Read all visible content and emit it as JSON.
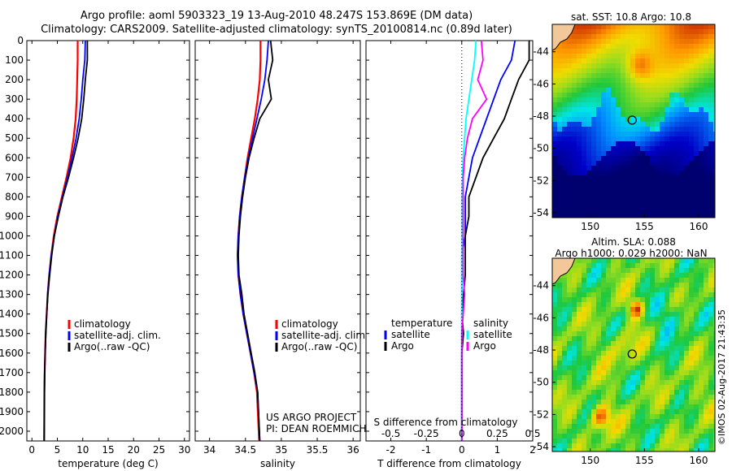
{
  "header": {
    "line1": "Argo profile: aoml 5903323_19 13-Aug-2010 48.247S 153.869E (DM data)",
    "line2": "Climatology: CARS2009. Satellite-adjusted climatology: synTS_20100814.nc (0.89d later)"
  },
  "colors": {
    "climatology": "#ff0000",
    "satellite": "#0000ff",
    "argo": "#000000",
    "sal_satellite": "#00ffff",
    "sal_argo": "#ff00ff"
  },
  "chart_data": [
    {
      "type": "line",
      "panel": "temperature",
      "xlabel": "temperature (deg C)",
      "ylabel": "",
      "xlim": [
        -1,
        31
      ],
      "ylim": [
        2050,
        0
      ],
      "xticks": [
        0,
        5,
        10,
        15,
        20,
        25,
        30
      ],
      "yticks": [
        0,
        100,
        200,
        300,
        400,
        500,
        600,
        700,
        800,
        900,
        1000,
        1100,
        1200,
        1300,
        1400,
        1500,
        1600,
        1700,
        1800,
        1900,
        2000
      ],
      "legend": {
        "position": "lower-right",
        "entries": [
          "climatology",
          "satellite-adj. clim.",
          "Argo(..raw -QC)"
        ]
      },
      "series": [
        {
          "name": "climatology",
          "color": "#ff0000",
          "x": [
            9.0,
            9.0,
            8.9,
            8.8,
            8.6,
            8.2,
            7.6,
            6.8,
            5.9,
            5.0,
            4.3,
            3.8,
            3.4,
            3.1,
            2.9,
            2.7,
            2.6,
            2.5,
            2.45,
            2.4
          ],
          "y": [
            0,
            100,
            200,
            300,
            400,
            500,
            600,
            700,
            800,
            900,
            1000,
            1100,
            1200,
            1300,
            1400,
            1500,
            1600,
            1700,
            1800,
            2050
          ]
        },
        {
          "name": "satellite-adj. clim.",
          "color": "#0000ff",
          "x": [
            10.5,
            10.4,
            10.0,
            9.7,
            9.3,
            8.7,
            7.9,
            7.0,
            6.0,
            5.1,
            4.4,
            3.8,
            3.4,
            3.1,
            2.9,
            2.7,
            2.6,
            2.5,
            2.45,
            2.4
          ],
          "y": [
            0,
            100,
            200,
            300,
            400,
            500,
            600,
            700,
            800,
            900,
            1000,
            1100,
            1200,
            1300,
            1400,
            1500,
            1600,
            1700,
            1800,
            2050
          ]
        },
        {
          "name": "Argo(..raw -QC)",
          "color": "#000000",
          "x": [
            10.9,
            10.9,
            10.5,
            10.2,
            9.8,
            9.1,
            8.2,
            7.2,
            6.1,
            5.2,
            4.4,
            3.9,
            3.5,
            3.15,
            2.9,
            2.75,
            2.6,
            2.5,
            2.45,
            2.4
          ],
          "y": [
            0,
            100,
            200,
            300,
            400,
            500,
            600,
            700,
            800,
            900,
            1000,
            1100,
            1200,
            1300,
            1400,
            1500,
            1600,
            1700,
            1800,
            2050
          ]
        }
      ]
    },
    {
      "type": "line",
      "panel": "salinity",
      "xlabel": "salinity",
      "xlim": [
        33.8,
        36.1
      ],
      "ylim": [
        2050,
        0
      ],
      "xticks": [
        34,
        34.5,
        35,
        35.5,
        36
      ],
      "legend": {
        "position": "lower-right",
        "entries": [
          "climatology",
          "satellite-adj. clim.",
          "Argo(..raw -QC)"
        ]
      },
      "annotations": [
        "US ARGO PROJECT",
        "PI: DEAN ROEMMICH"
      ],
      "series": [
        {
          "name": "climatology",
          "color": "#ff0000",
          "x": [
            34.71,
            34.71,
            34.7,
            34.67,
            34.63,
            34.58,
            34.53,
            34.49,
            34.45,
            34.42,
            34.4,
            34.39,
            34.4,
            34.43,
            34.47,
            34.52,
            34.57,
            34.62,
            34.66,
            34.69
          ],
          "y": [
            0,
            100,
            200,
            300,
            400,
            500,
            600,
            700,
            800,
            900,
            1000,
            1100,
            1200,
            1300,
            1400,
            1500,
            1600,
            1700,
            1800,
            2050
          ]
        },
        {
          "name": "satellite-adj. clim.",
          "color": "#0000ff",
          "x": [
            34.82,
            34.8,
            34.77,
            34.72,
            34.66,
            34.6,
            34.54,
            34.49,
            34.45,
            34.42,
            34.4,
            34.39,
            34.4,
            34.43,
            34.47,
            34.52,
            34.57,
            34.62,
            34.67,
            34.7
          ],
          "y": [
            0,
            100,
            200,
            300,
            400,
            500,
            600,
            700,
            800,
            900,
            1000,
            1100,
            1200,
            1300,
            1400,
            1500,
            1600,
            1700,
            1800,
            2050
          ]
        },
        {
          "name": "Argo(..raw -QC)",
          "color": "#000000",
          "x": [
            34.85,
            34.88,
            34.82,
            34.86,
            34.7,
            34.62,
            34.55,
            34.5,
            34.46,
            34.43,
            34.41,
            34.4,
            34.41,
            34.45,
            34.48,
            34.53,
            34.58,
            34.63,
            34.67,
            34.7
          ],
          "y": [
            0,
            100,
            200,
            300,
            400,
            500,
            600,
            700,
            800,
            900,
            1000,
            1100,
            1200,
            1300,
            1400,
            1500,
            1600,
            1700,
            1800,
            2050
          ]
        }
      ]
    },
    {
      "type": "line",
      "panel": "differences",
      "xlabel": "T difference from climatology",
      "xlabel_top": "S difference from climatology",
      "xlim": [
        -2.7,
        2.0
      ],
      "ylim": [
        2050,
        0
      ],
      "xticks": [
        -2,
        -1,
        0,
        1,
        2
      ],
      "xticks_sal": [
        {
          "label": "-0.5",
          "value": -2
        },
        {
          "label": "-0.25",
          "value": -1
        },
        {
          "label": "0",
          "value": 0
        },
        {
          "label": "0.25",
          "value": 1
        },
        {
          "label": "0.5",
          "value": 2
        }
      ],
      "legend": {
        "position": "lower-center",
        "temperature_title": "temperature",
        "salinity_title": "salinity",
        "temperature_entries": [
          "satellite",
          "Argo"
        ],
        "salinity_entries": [
          "satellite",
          "Argo"
        ]
      },
      "series": [
        {
          "name": "temperature satellite",
          "color": "#0000ff",
          "x": [
            1.5,
            1.4,
            1.1,
            0.9,
            0.7,
            0.5,
            0.3,
            0.2,
            0.1,
            0.1,
            0.1,
            0.0,
            0.0,
            0.0,
            0.0,
            0.0,
            0.0,
            0.0,
            0.0,
            0.0
          ],
          "y": [
            0,
            100,
            200,
            300,
            400,
            500,
            600,
            700,
            800,
            900,
            1000,
            1100,
            1200,
            1300,
            1400,
            1500,
            1600,
            1700,
            1800,
            2050
          ]
        },
        {
          "name": "temperature Argo",
          "color": "#000000",
          "x": [
            1.9,
            1.9,
            1.6,
            1.4,
            1.2,
            0.9,
            0.6,
            0.4,
            0.2,
            0.2,
            0.1,
            0.1,
            0.1,
            0.05,
            0.0,
            0.05,
            0.0,
            0.0,
            0.0,
            0.0
          ],
          "y": [
            0,
            100,
            200,
            300,
            400,
            500,
            600,
            700,
            800,
            900,
            1000,
            1100,
            1200,
            1300,
            1400,
            1500,
            1600,
            1700,
            1800,
            2050
          ]
        },
        {
          "name": "salinity satellite",
          "color": "#00ffff",
          "x": [
            0.4,
            0.36,
            0.28,
            0.2,
            0.12,
            0.08,
            0.04,
            0.02,
            0.0,
            0.0,
            0.0,
            0.0,
            0.0,
            0.0,
            0.0,
            0.0,
            0.0,
            0.0,
            0.0,
            0.0
          ],
          "y": [
            0,
            100,
            200,
            300,
            400,
            500,
            600,
            700,
            800,
            900,
            1000,
            1100,
            1200,
            1300,
            1400,
            1500,
            1600,
            1700,
            1800,
            2050
          ]
        },
        {
          "name": "salinity Argo",
          "color": "#ff00ff",
          "x": [
            0.55,
            0.6,
            0.45,
            0.7,
            0.3,
            0.16,
            0.08,
            0.04,
            0.04,
            0.04,
            0.04,
            0.04,
            0.04,
            0.08,
            0.04,
            0.0,
            0.0,
            0.0,
            0.0,
            0.0
          ],
          "y": [
            0,
            100,
            200,
            300,
            400,
            500,
            600,
            700,
            800,
            900,
            1000,
            1100,
            1200,
            1300,
            1400,
            1500,
            1600,
            1700,
            1800,
            2050
          ]
        }
      ]
    },
    {
      "type": "heatmap",
      "panel": "sst_map",
      "title": "sat. SST: 10.8 Argo: 10.8",
      "xlim": [
        146.5,
        161.5
      ],
      "ylim": [
        -54.3,
        -42.3
      ],
      "xticks": [
        150,
        155,
        160
      ],
      "yticks": [
        -44,
        -46,
        -48,
        -50,
        -52,
        -54
      ],
      "marker": {
        "lon": 153.869,
        "lat": -48.247
      }
    },
    {
      "type": "heatmap",
      "panel": "sla_map",
      "title": "Altim. SLA: 0.088",
      "subtitle": "Argo h1000: 0.029 h2000: NaN",
      "xlim": [
        146.5,
        161.5
      ],
      "ylim": [
        -54.3,
        -42.3
      ],
      "xticks": [
        150,
        155,
        160
      ],
      "yticks": [
        -44,
        -46,
        -48,
        -50,
        -52,
        -54
      ],
      "marker": {
        "lon": 153.869,
        "lat": -48.247
      }
    }
  ],
  "footer": {
    "timestamp": "©IMOS 02-Aug-2017 21:43:35"
  }
}
